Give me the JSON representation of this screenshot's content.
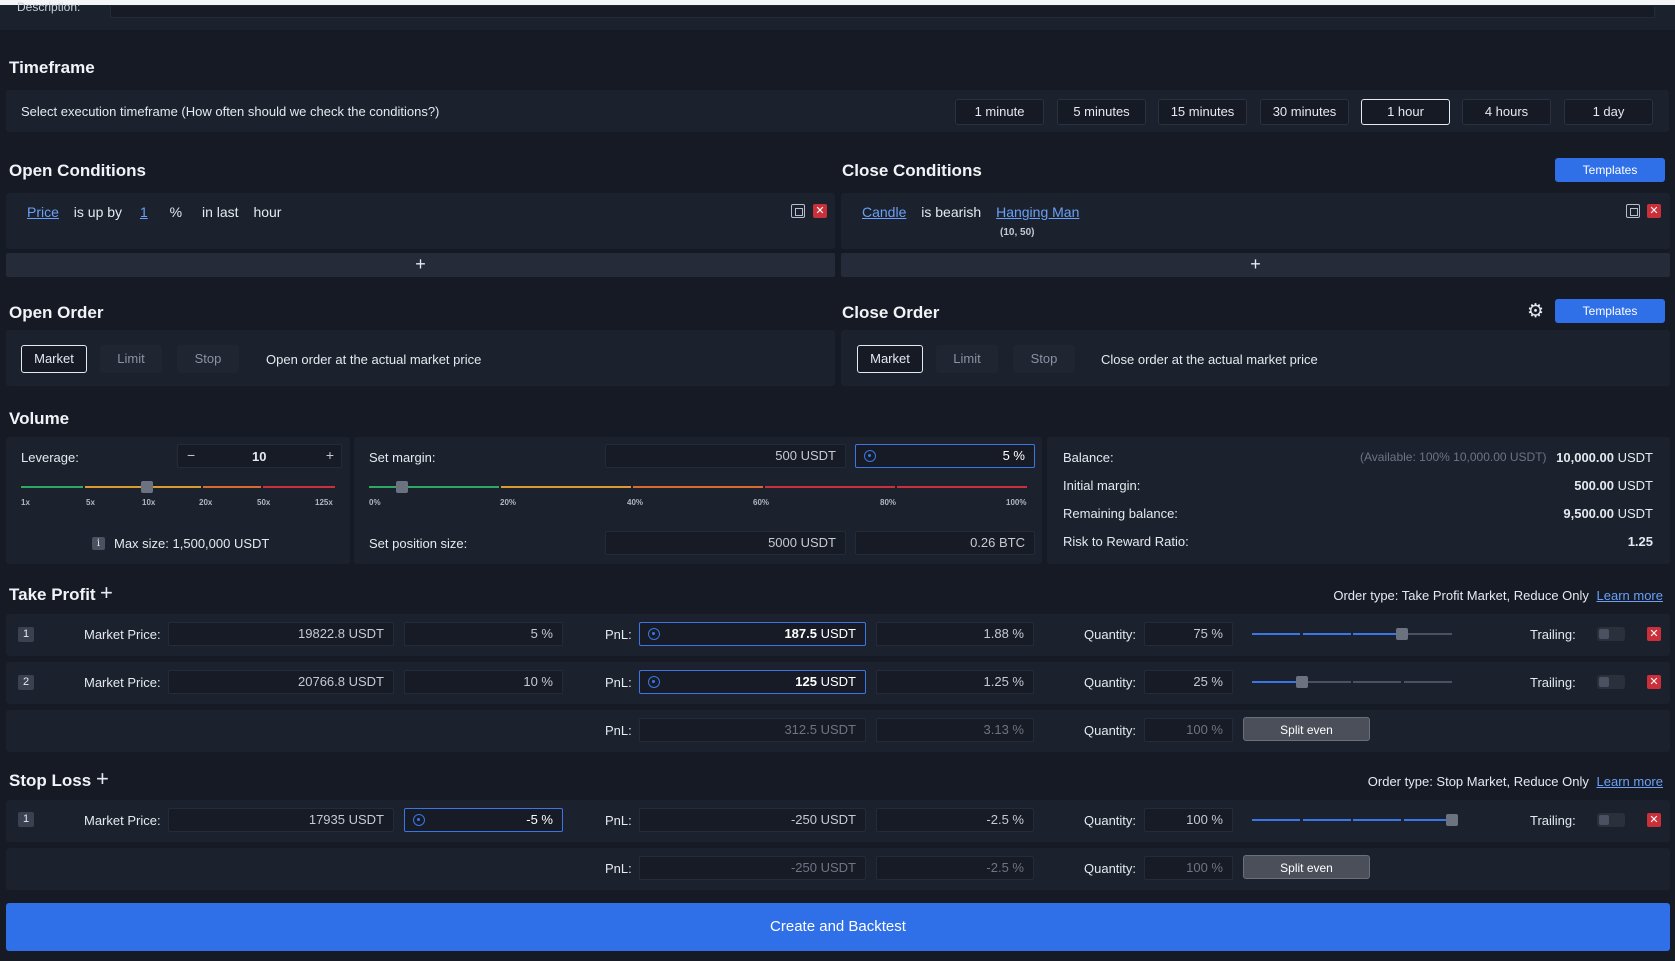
{
  "description": {
    "label": "Description:"
  },
  "timeframe": {
    "title": "Timeframe",
    "prompt": "Select execution timeframe (How often should we check the conditions?)",
    "options": [
      "1 minute",
      "5 minutes",
      "15 minutes",
      "30 minutes",
      "1 hour",
      "4 hours",
      "1 day"
    ],
    "selected": "1 hour"
  },
  "open_conditions": {
    "title": "Open Conditions",
    "rule": {
      "subject": "Price",
      "op": "is up by",
      "value": "1",
      "unit": "%",
      "window": "in last",
      "period": "hour"
    }
  },
  "close_conditions": {
    "title": "Close Conditions",
    "templates_label": "Templates",
    "rule": {
      "subject": "Candle",
      "op": "is bearish",
      "pattern": "Hanging Man",
      "params": "(10, 50)"
    }
  },
  "add_symbol": "+",
  "open_order": {
    "title": "Open Order",
    "types": [
      "Market",
      "Limit",
      "Stop"
    ],
    "selected": "Market",
    "description": "Open order at the actual market price"
  },
  "close_order": {
    "title": "Close Order",
    "templates_label": "Templates",
    "types": [
      "Market",
      "Limit",
      "Stop"
    ],
    "selected": "Market",
    "description": "Close order at the actual market price"
  },
  "volume": {
    "title": "Volume",
    "leverage_label": "Leverage:",
    "leverage_value": "10",
    "minus": "−",
    "plus": "+",
    "leverage_ticks": [
      "1x",
      "5x",
      "10x",
      "20x",
      "50x",
      "125x"
    ],
    "leverage_level": 10,
    "max_size": "Max size: 1,500,000 USDT",
    "info_icon": "i",
    "margin_label": "Set margin:",
    "margin_usdt": "500 USDT",
    "margin_pct": "5 %",
    "margin_ticks": [
      "0%",
      "20%",
      "40%",
      "60%",
      "80%",
      "100%"
    ],
    "margin_level": 0.05,
    "position_label": "Set position size:",
    "position_usdt": "5000 USDT",
    "position_btc": "0.26 BTC",
    "balance_label": "Balance:",
    "available": "(Available: 100% 10,000.00 USDT)",
    "balance_value": "10,000.00",
    "initial_margin_label": "Initial margin:",
    "initial_margin_value": "500.00",
    "remaining_label": "Remaining balance:",
    "remaining_value": "9,500.00",
    "rr_label": "Risk to Reward Ratio:",
    "rr_value": "1.25",
    "unit": "USDT"
  },
  "take_profit": {
    "title": "Take Profit",
    "order_type": "Order type: Take Profit Market, Reduce Only",
    "learn_more": "Learn more",
    "rows": [
      {
        "idx": "1",
        "price_label": "Market Price:",
        "price": "19822.8 USDT",
        "price_pct": "5 %",
        "pnl_label": "PnL:",
        "pnl_value": "187.5",
        "pnl_unit": "USDT",
        "pnl_pct": "1.88 %",
        "qty_label": "Quantity:",
        "qty": "75 %",
        "qty_level": 0.75,
        "trailing_label": "Trailing:"
      },
      {
        "idx": "2",
        "price_label": "Market Price:",
        "price": "20766.8 USDT",
        "price_pct": "10 %",
        "pnl_label": "PnL:",
        "pnl_value": "125",
        "pnl_unit": "USDT",
        "pnl_pct": "1.25 %",
        "qty_label": "Quantity:",
        "qty": "25 %",
        "qty_level": 0.25,
        "trailing_label": "Trailing:"
      }
    ],
    "summary": {
      "pnl_label": "PnL:",
      "pnl": "312.5 USDT",
      "pnl_pct": "3.13 %",
      "qty_label": "Quantity:",
      "qty": "100 %",
      "split_label": "Split even"
    }
  },
  "stop_loss": {
    "title": "Stop Loss",
    "order_type": "Order type: Stop Market, Reduce Only",
    "learn_more": "Learn more",
    "rows": [
      {
        "idx": "1",
        "price_label": "Market Price:",
        "price": "17935 USDT",
        "price_pct": "-5 %",
        "pnl_label": "PnL:",
        "pnl": "-250 USDT",
        "pnl_pct": "-2.5 %",
        "qty_label": "Quantity:",
        "qty": "100 %",
        "qty_level": 1.0,
        "trailing_label": "Trailing:"
      }
    ],
    "summary": {
      "pnl_label": "PnL:",
      "pnl": "-250 USDT",
      "pnl_pct": "-2.5 %",
      "qty_label": "Quantity:",
      "qty": "100 %",
      "split_label": "Split even"
    }
  },
  "submit_label": "Create and Backtest",
  "colors": {
    "accent": "#2f6fe8",
    "danger": "#c9303a",
    "panel": "#1b212d",
    "bg": "#151a25"
  }
}
